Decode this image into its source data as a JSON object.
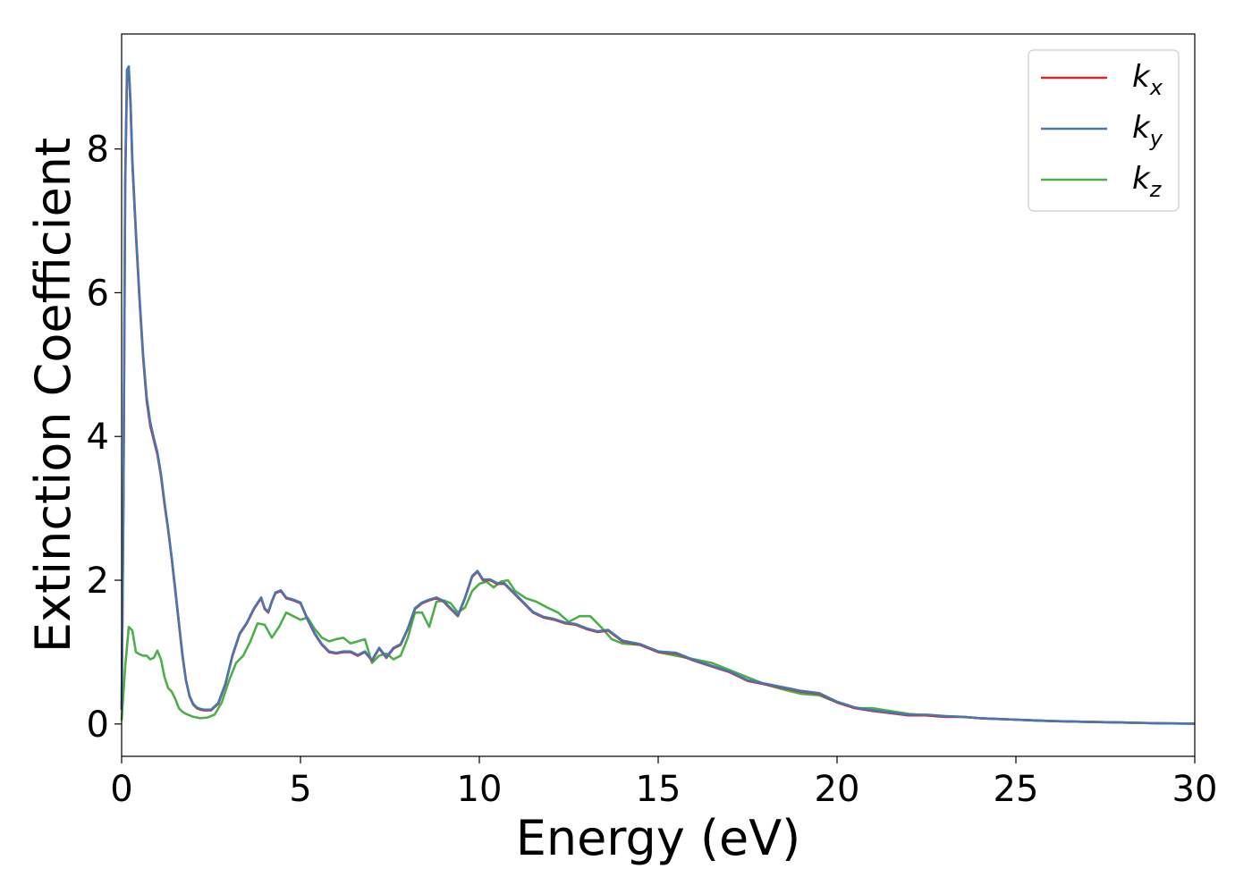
{
  "chart_data": {
    "type": "line",
    "title": "",
    "xlabel": "Energy (eV)",
    "ylabel": "Extinction Coefficient",
    "xlim": [
      0,
      30
    ],
    "ylim": [
      -0.45,
      9.6
    ],
    "xticks": [
      0,
      5,
      10,
      15,
      20,
      25,
      30
    ],
    "yticks": [
      0,
      2,
      4,
      6,
      8
    ],
    "grid": false,
    "legend_position": "top-right",
    "series": [
      {
        "name": "k",
        "subscript": "x",
        "color": "#d62728",
        "x": [
          0,
          0.05,
          0.1,
          0.15,
          0.2,
          0.25,
          0.3,
          0.4,
          0.5,
          0.6,
          0.7,
          0.8,
          0.9,
          1.0,
          1.1,
          1.2,
          1.3,
          1.4,
          1.5,
          1.6,
          1.7,
          1.8,
          1.9,
          2.0,
          2.1,
          2.2,
          2.3,
          2.5,
          2.7,
          2.9,
          3.1,
          3.3,
          3.5,
          3.7,
          3.9,
          4.0,
          4.1,
          4.2,
          4.3,
          4.45,
          4.6,
          4.8,
          5.0,
          5.2,
          5.4,
          5.6,
          5.8,
          6.0,
          6.2,
          6.4,
          6.6,
          6.8,
          7.0,
          7.2,
          7.4,
          7.6,
          7.8,
          8.0,
          8.2,
          8.4,
          8.6,
          8.8,
          9.0,
          9.2,
          9.4,
          9.6,
          9.8,
          9.95,
          10.1,
          10.3,
          10.5,
          10.7,
          10.9,
          11.2,
          11.5,
          11.8,
          12.1,
          12.4,
          12.7,
          13.0,
          13.3,
          13.6,
          14.0,
          14.5,
          15.0,
          15.5,
          16.0,
          16.5,
          17.0,
          17.5,
          18.0,
          18.5,
          19.0,
          19.5,
          20.0,
          20.5,
          21.0,
          21.5,
          22.0,
          22.5,
          23.0,
          23.5,
          24.0,
          25.0,
          26.0,
          27.0,
          28.0,
          29.0,
          30.0
        ],
        "values": [
          0.2,
          3.0,
          7.5,
          9.0,
          9.1,
          8.6,
          7.8,
          6.8,
          5.9,
          5.1,
          4.5,
          4.15,
          3.95,
          3.75,
          3.45,
          3.05,
          2.7,
          2.3,
          1.85,
          1.4,
          0.95,
          0.6,
          0.38,
          0.27,
          0.22,
          0.2,
          0.19,
          0.19,
          0.28,
          0.55,
          0.95,
          1.25,
          1.4,
          1.6,
          1.75,
          1.6,
          1.55,
          1.7,
          1.82,
          1.85,
          1.75,
          1.72,
          1.68,
          1.45,
          1.25,
          1.1,
          1.0,
          0.98,
          1.0,
          1.0,
          0.95,
          1.0,
          0.88,
          1.05,
          0.92,
          1.05,
          1.1,
          1.32,
          1.6,
          1.68,
          1.72,
          1.75,
          1.7,
          1.6,
          1.5,
          1.75,
          2.05,
          2.12,
          2.0,
          2.0,
          1.95,
          1.95,
          1.85,
          1.7,
          1.55,
          1.48,
          1.45,
          1.4,
          1.38,
          1.32,
          1.28,
          1.3,
          1.15,
          1.1,
          1.0,
          0.98,
          0.88,
          0.8,
          0.72,
          0.6,
          0.55,
          0.5,
          0.45,
          0.42,
          0.3,
          0.22,
          0.18,
          0.15,
          0.12,
          0.12,
          0.1,
          0.1,
          0.08,
          0.06,
          0.04,
          0.03,
          0.02,
          0.01,
          0.005
        ]
      },
      {
        "name": "k",
        "subscript": "y",
        "color": "#4a76b0",
        "x": [
          0,
          0.05,
          0.1,
          0.15,
          0.2,
          0.25,
          0.3,
          0.4,
          0.5,
          0.6,
          0.7,
          0.8,
          0.9,
          1.0,
          1.1,
          1.2,
          1.3,
          1.4,
          1.5,
          1.6,
          1.7,
          1.8,
          1.9,
          2.0,
          2.1,
          2.2,
          2.3,
          2.5,
          2.7,
          2.9,
          3.1,
          3.3,
          3.5,
          3.7,
          3.9,
          4.0,
          4.1,
          4.2,
          4.3,
          4.45,
          4.6,
          4.8,
          5.0,
          5.2,
          5.4,
          5.6,
          5.8,
          6.0,
          6.2,
          6.4,
          6.6,
          6.8,
          7.0,
          7.2,
          7.4,
          7.6,
          7.8,
          8.0,
          8.2,
          8.4,
          8.6,
          8.8,
          9.0,
          9.2,
          9.4,
          9.6,
          9.8,
          9.95,
          10.1,
          10.3,
          10.5,
          10.7,
          10.9,
          11.2,
          11.5,
          11.8,
          12.1,
          12.4,
          12.7,
          13.0,
          13.3,
          13.6,
          14.0,
          14.5,
          15.0,
          15.5,
          16.0,
          16.5,
          17.0,
          17.5,
          18.0,
          18.5,
          19.0,
          19.5,
          20.0,
          20.5,
          21.0,
          21.5,
          22.0,
          22.5,
          23.0,
          23.5,
          24.0,
          25.0,
          26.0,
          27.0,
          28.0,
          29.0,
          30.0
        ],
        "values": [
          0.2,
          3.1,
          7.6,
          9.1,
          9.15,
          8.65,
          7.85,
          6.85,
          5.95,
          5.15,
          4.55,
          4.2,
          3.98,
          3.78,
          3.48,
          3.08,
          2.72,
          2.32,
          1.88,
          1.42,
          0.97,
          0.61,
          0.39,
          0.28,
          0.23,
          0.21,
          0.2,
          0.2,
          0.29,
          0.56,
          0.96,
          1.26,
          1.41,
          1.61,
          1.76,
          1.61,
          1.56,
          1.71,
          1.83,
          1.86,
          1.76,
          1.73,
          1.69,
          1.46,
          1.26,
          1.11,
          1.01,
          0.99,
          1.01,
          1.01,
          0.96,
          1.01,
          0.89,
          1.06,
          0.93,
          1.06,
          1.11,
          1.33,
          1.61,
          1.69,
          1.73,
          1.76,
          1.71,
          1.61,
          1.51,
          1.76,
          2.06,
          2.13,
          2.01,
          2.01,
          1.96,
          1.96,
          1.86,
          1.71,
          1.56,
          1.49,
          1.46,
          1.41,
          1.39,
          1.33,
          1.29,
          1.31,
          1.16,
          1.11,
          1.01,
          0.99,
          0.89,
          0.81,
          0.73,
          0.61,
          0.56,
          0.51,
          0.46,
          0.43,
          0.31,
          0.23,
          0.19,
          0.16,
          0.13,
          0.13,
          0.11,
          0.1,
          0.08,
          0.06,
          0.04,
          0.03,
          0.02,
          0.01,
          0.005
        ]
      },
      {
        "name": "k",
        "subscript": "z",
        "color": "#4daf4a",
        "x": [
          0,
          0.1,
          0.2,
          0.3,
          0.4,
          0.5,
          0.6,
          0.7,
          0.8,
          0.9,
          1.0,
          1.1,
          1.2,
          1.3,
          1.4,
          1.5,
          1.6,
          1.7,
          1.8,
          2.0,
          2.2,
          2.4,
          2.6,
          2.8,
          3.0,
          3.2,
          3.4,
          3.6,
          3.8,
          4.0,
          4.2,
          4.4,
          4.6,
          4.8,
          5.0,
          5.2,
          5.4,
          5.6,
          5.8,
          6.0,
          6.2,
          6.4,
          6.6,
          6.8,
          7.0,
          7.2,
          7.4,
          7.6,
          7.8,
          8.0,
          8.2,
          8.4,
          8.6,
          8.8,
          9.0,
          9.2,
          9.4,
          9.6,
          9.8,
          10.0,
          10.2,
          10.4,
          10.6,
          10.8,
          11.0,
          11.3,
          11.6,
          11.9,
          12.2,
          12.5,
          12.8,
          13.1,
          13.4,
          13.7,
          14.0,
          14.5,
          15.0,
          15.5,
          16.0,
          16.5,
          17.0,
          17.5,
          18.0,
          18.5,
          19.0,
          19.5,
          20.0,
          20.5,
          21.0,
          21.5,
          22.0,
          22.5,
          23.0,
          23.5,
          24.0,
          25.0,
          26.0,
          27.0,
          28.0,
          29.0,
          30.0
        ],
        "values": [
          0.05,
          0.8,
          1.35,
          1.3,
          1.0,
          0.97,
          0.95,
          0.95,
          0.9,
          0.92,
          1.02,
          0.9,
          0.65,
          0.5,
          0.45,
          0.35,
          0.22,
          0.17,
          0.14,
          0.1,
          0.08,
          0.09,
          0.13,
          0.3,
          0.6,
          0.85,
          0.95,
          1.15,
          1.4,
          1.38,
          1.2,
          1.35,
          1.55,
          1.5,
          1.45,
          1.48,
          1.32,
          1.2,
          1.15,
          1.18,
          1.2,
          1.12,
          1.15,
          1.18,
          0.85,
          0.95,
          0.98,
          0.9,
          0.95,
          1.2,
          1.55,
          1.55,
          1.35,
          1.7,
          1.72,
          1.68,
          1.55,
          1.62,
          1.85,
          1.95,
          1.98,
          1.9,
          1.98,
          2.0,
          1.85,
          1.75,
          1.7,
          1.62,
          1.55,
          1.42,
          1.5,
          1.5,
          1.35,
          1.18,
          1.12,
          1.1,
          1.0,
          0.95,
          0.9,
          0.85,
          0.75,
          0.65,
          0.55,
          0.48,
          0.42,
          0.4,
          0.3,
          0.22,
          0.22,
          0.18,
          0.14,
          0.12,
          0.1,
          0.1,
          0.08,
          0.06,
          0.04,
          0.03,
          0.02,
          0.01,
          0.005
        ]
      }
    ]
  }
}
